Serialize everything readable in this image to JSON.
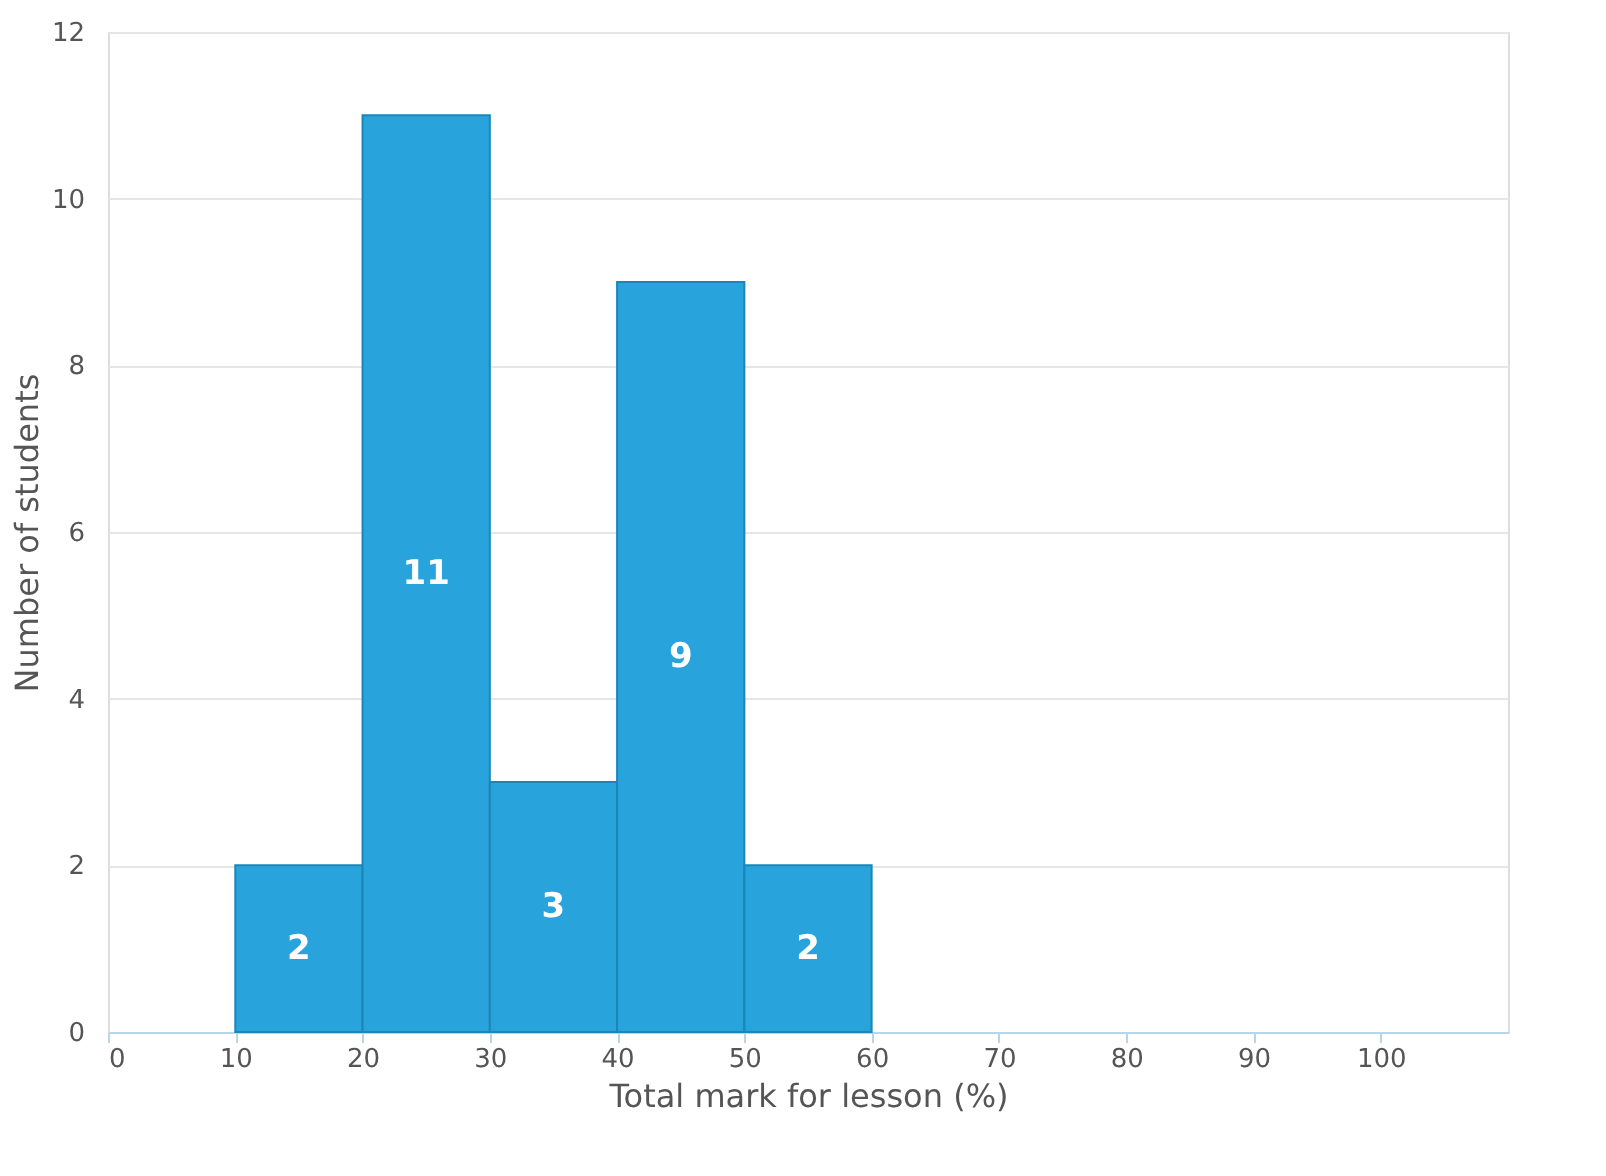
{
  "chart_data": {
    "type": "histogram",
    "xlabel": "Total mark for lesson (%)",
    "ylabel": "Number of students",
    "bins": [
      10,
      20,
      30,
      40,
      50,
      60
    ],
    "values": [
      2,
      11,
      3,
      9,
      2
    ],
    "color": "#29a3dc",
    "xlim": [
      0,
      110
    ],
    "xticks": [
      0,
      10,
      20,
      30,
      40,
      50,
      60,
      70,
      80,
      90,
      100
    ],
    "ylim": [
      0,
      12
    ],
    "yticks": [
      0,
      2,
      4,
      6,
      8,
      10,
      12
    ],
    "grid": "y",
    "data_labels": true
  }
}
